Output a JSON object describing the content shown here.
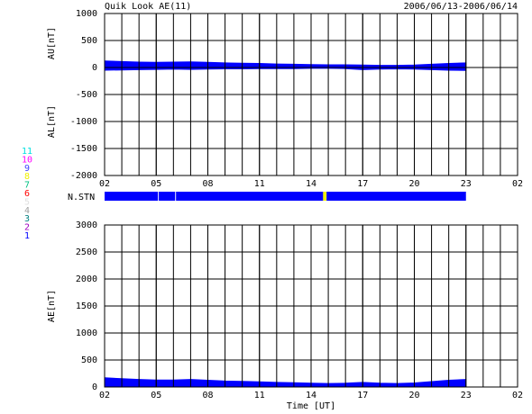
{
  "title": "Quik Look AE(11)",
  "date_range": "2006/06/13-2006/06/14",
  "stations": [
    {
      "label": "11",
      "color": "#00e0e0"
    },
    {
      "label": "10",
      "color": "#ff00ff"
    },
    {
      "label": "9",
      "color": "#4040ff"
    },
    {
      "label": "8",
      "color": "#f0f000"
    },
    {
      "label": "7",
      "color": "#00c080"
    },
    {
      "label": "6",
      "color": "#ff0000"
    },
    {
      "label": "5",
      "color": "#e0e0e0"
    },
    {
      "label": "4",
      "color": "#a0a0a0"
    },
    {
      "label": "3",
      "color": "#008080"
    },
    {
      "label": "2",
      "color": "#a000c0"
    },
    {
      "label": "1",
      "color": "#0000ff"
    }
  ],
  "n_stn": {
    "label": "N.STN",
    "segments": [
      {
        "start": 0,
        "end": 3.1,
        "color": "#0000ff"
      },
      {
        "start": 3.15,
        "end": 4.1,
        "color": "#0000ff"
      },
      {
        "start": 4.15,
        "end": 12.7,
        "color": "#0000ff"
      },
      {
        "start": 12.7,
        "end": 12.9,
        "color": "#f0f000"
      },
      {
        "start": 12.9,
        "end": 21,
        "color": "#0000ff"
      }
    ]
  },
  "chart_data": [
    {
      "type": "area",
      "ylabel_upper": "AU[nT]",
      "ylabel_lower": "AL[nT]",
      "x": [
        0,
        1,
        2,
        3,
        4,
        5,
        6,
        7,
        8,
        9,
        10,
        11,
        12,
        13,
        14,
        15,
        16,
        17,
        18,
        19,
        20,
        21
      ],
      "series": [
        {
          "name": "AU",
          "color": "#0000ff",
          "values": [
            120,
            110,
            100,
            95,
            100,
            105,
            95,
            85,
            80,
            75,
            65,
            60,
            55,
            50,
            50,
            45,
            40,
            40,
            45,
            60,
            75,
            85
          ]
        },
        {
          "name": "AL",
          "color": "#0000ff",
          "values": [
            -50,
            -45,
            -40,
            -35,
            -30,
            -35,
            -30,
            -25,
            -25,
            -20,
            -20,
            -20,
            -15,
            -15,
            -20,
            -40,
            -30,
            -25,
            -30,
            -40,
            -50,
            -55
          ]
        }
      ],
      "xlim": [
        0,
        24
      ],
      "xticks": [
        {
          "value": 0,
          "label": "02"
        },
        {
          "value": 3,
          "label": "05"
        },
        {
          "value": 6,
          "label": "08"
        },
        {
          "value": 9,
          "label": "11"
        },
        {
          "value": 12,
          "label": "14"
        },
        {
          "value": 15,
          "label": "17"
        },
        {
          "value": 18,
          "label": "20"
        },
        {
          "value": 21,
          "label": "23"
        },
        {
          "value": 24,
          "label": "02"
        }
      ],
      "ylim": [
        -2000,
        1000
      ],
      "yticks": [
        -2000,
        -1500,
        -1000,
        -500,
        0,
        500,
        1000
      ],
      "grid": true
    },
    {
      "type": "area",
      "ylabel": "AE[nT]",
      "xlabel": "Time [UT]",
      "x": [
        0,
        1,
        2,
        3,
        4,
        5,
        6,
        7,
        8,
        9,
        10,
        11,
        12,
        13,
        14,
        15,
        16,
        17,
        18,
        19,
        20,
        21
      ],
      "series": [
        {
          "name": "AE",
          "color": "#0000ff",
          "values": [
            170,
            155,
            140,
            130,
            130,
            140,
            125,
            110,
            105,
            95,
            85,
            80,
            70,
            65,
            70,
            85,
            70,
            65,
            75,
            100,
            125,
            140
          ]
        }
      ],
      "xlim": [
        0,
        24
      ],
      "xticks": [
        {
          "value": 0,
          "label": "02"
        },
        {
          "value": 3,
          "label": "05"
        },
        {
          "value": 6,
          "label": "08"
        },
        {
          "value": 9,
          "label": "11"
        },
        {
          "value": 12,
          "label": "14"
        },
        {
          "value": 15,
          "label": "17"
        },
        {
          "value": 18,
          "label": "20"
        },
        {
          "value": 21,
          "label": "23"
        },
        {
          "value": 24,
          "label": "02"
        }
      ],
      "ylim": [
        0,
        3000
      ],
      "yticks": [
        0,
        500,
        1000,
        1500,
        2000,
        2500,
        3000
      ],
      "grid": true
    }
  ]
}
